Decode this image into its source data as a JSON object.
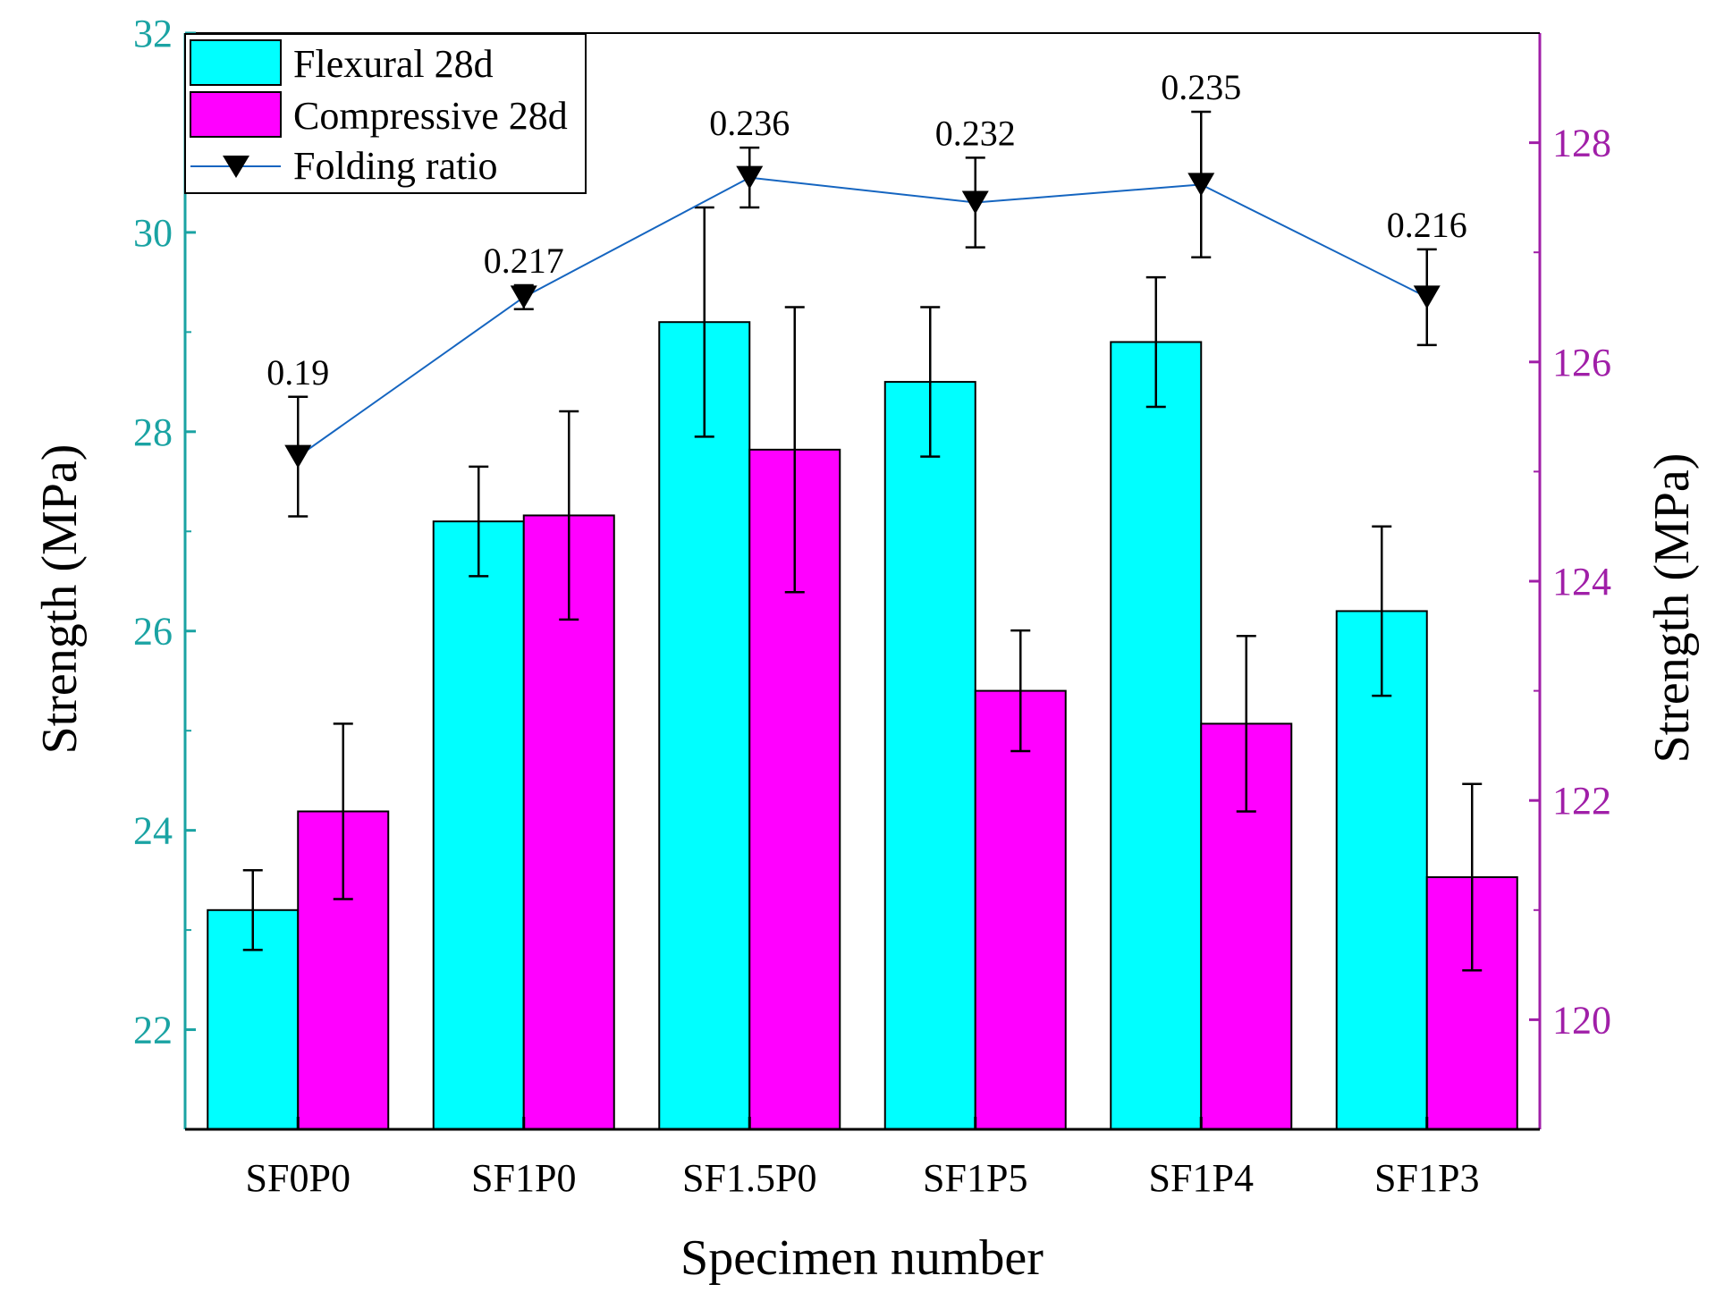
{
  "chart_data": {
    "type": "bar",
    "xlabel": "Specimen number",
    "ylabel_left": "Strength (MPa)",
    "ylabel_right": "Strength (MPa)",
    "ylim_left": [
      21,
      32
    ],
    "ylim_right": [
      119,
      129
    ],
    "yticks_left": [
      22,
      24,
      26,
      28,
      30,
      32
    ],
    "yticks_right": [
      120,
      122,
      124,
      126,
      128
    ],
    "categories": [
      "SF0P0",
      "SF1P0",
      "SF1.5P0",
      "SF1P5",
      "SF1P4",
      "SF1P3"
    ],
    "series": [
      {
        "name": "Flexural 28d",
        "axis": "left",
        "color": "#00ffff",
        "values": [
          23.2,
          27.1,
          29.1,
          28.5,
          28.9,
          26.2
        ],
        "errors": [
          0.4,
          0.55,
          1.15,
          0.75,
          0.65,
          0.85
        ]
      },
      {
        "name": "Compressive 28d",
        "axis": "right",
        "color": "#ff00ff",
        "values": [
          121.9,
          124.6,
          125.2,
          123.0,
          122.7,
          121.3
        ],
        "errors": [
          0.8,
          0.95,
          1.3,
          0.55,
          0.8,
          0.85
        ]
      },
      {
        "name": "Folding ratio",
        "axis": "left",
        "type": "line",
        "color": "#1565c0",
        "values": [
          27.75,
          29.35,
          30.55,
          30.3,
          30.48,
          29.35
        ],
        "errors": [
          0.6,
          0.12,
          0.3,
          0.45,
          0.73,
          0.48
        ],
        "labels": [
          "0.19",
          "0.217",
          "0.236",
          "0.232",
          "0.235",
          "0.216"
        ]
      }
    ],
    "legend": {
      "position": "top-left",
      "items": [
        "Flexural 28d",
        "Compressive 28d",
        "Folding ratio"
      ]
    },
    "colors": {
      "left_axis": "#1aa3a3",
      "right_axis": "#a01fa8",
      "axis": "#000000"
    }
  }
}
